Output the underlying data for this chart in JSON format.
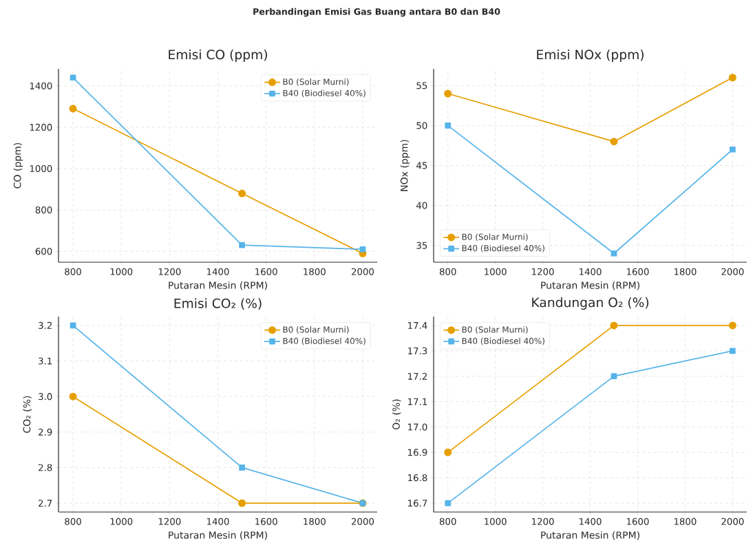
{
  "chart_data": [
    {
      "type": "other",
      "title": "Perbandingan Emisi Gas Buang antara B0 dan B40"
    },
    {
      "type": "line",
      "title": "Emisi CO (ppm)",
      "xlabel": "Putaran Mesin (RPM)",
      "ylabel": "CO (ppm)",
      "x": [
        800,
        1500,
        2000
      ],
      "series": [
        {
          "name": "B0 (Solar Murni)",
          "color": "#e69f00",
          "marker": "circle",
          "values": [
            1290,
            880,
            590
          ]
        },
        {
          "name": "B40 (Biodiesel 40%)",
          "color": "#56b4e9",
          "marker": "square",
          "values": [
            1440,
            630,
            610
          ]
        }
      ],
      "xlim": [
        740,
        2060
      ],
      "ylim": [
        547.5,
        1482.5
      ],
      "xticks": [
        800,
        1000,
        1200,
        1400,
        1600,
        1800,
        2000
      ],
      "yticks": [
        600,
        800,
        1000,
        1200,
        1400
      ],
      "grid": true,
      "legend": "top right"
    },
    {
      "type": "line",
      "title": "Emisi NOx (ppm)",
      "xlabel": "Putaran Mesin (RPM)",
      "ylabel": "NOx (ppm)",
      "x": [
        800,
        1500,
        2000
      ],
      "series": [
        {
          "name": "B0 (Solar Murni)",
          "color": "#e69f00",
          "marker": "circle",
          "values": [
            54,
            48,
            56
          ]
        },
        {
          "name": "B40 (Biodiesel 40%)",
          "color": "#56b4e9",
          "marker": "square",
          "values": [
            50,
            34,
            47
          ]
        }
      ],
      "xlim": [
        740,
        2060
      ],
      "ylim": [
        32.9,
        57.1
      ],
      "xticks": [
        800,
        1000,
        1200,
        1400,
        1600,
        1800,
        2000
      ],
      "yticks": [
        35,
        40,
        45,
        50,
        55
      ],
      "grid": true,
      "legend": "bottom left"
    },
    {
      "type": "line",
      "title": "Emisi CO₂ (%)",
      "xlabel": "Putaran Mesin (RPM)",
      "ylabel": "CO₂ (%)",
      "x": [
        800,
        1500,
        2000
      ],
      "series": [
        {
          "name": "B0 (Solar Murni)",
          "color": "#e69f00",
          "marker": "circle",
          "values": [
            3.0,
            2.7,
            2.7
          ]
        },
        {
          "name": "B40 (Biodiesel 40%)",
          "color": "#56b4e9",
          "marker": "square",
          "values": [
            3.2,
            2.8,
            2.7
          ]
        }
      ],
      "xlim": [
        740,
        2060
      ],
      "ylim": [
        2.675,
        3.225
      ],
      "xticks": [
        800,
        1000,
        1200,
        1400,
        1600,
        1800,
        2000
      ],
      "yticks": [
        {
          "value": 2.7,
          "label": "2.7"
        },
        {
          "value": 2.8,
          "label": "2.8"
        },
        {
          "value": 2.9,
          "label": "2.9"
        },
        {
          "value": 3.0,
          "label": "3.0"
        },
        {
          "value": 3.1,
          "label": "3.1"
        },
        {
          "value": 3.2,
          "label": "3.2"
        }
      ],
      "grid": true,
      "legend": "top right"
    },
    {
      "type": "line",
      "title": "Kandungan O₂ (%)",
      "xlabel": "Putaran Mesin (RPM)",
      "ylabel": "O₂ (%)",
      "x": [
        800,
        1500,
        2000
      ],
      "series": [
        {
          "name": "B0 (Solar Murni)",
          "color": "#e69f00",
          "marker": "circle",
          "values": [
            16.9,
            17.4,
            17.4
          ]
        },
        {
          "name": "B40 (Biodiesel 40%)",
          "color": "#56b4e9",
          "marker": "square",
          "values": [
            16.7,
            17.2,
            17.3
          ]
        }
      ],
      "xlim": [
        740,
        2060
      ],
      "ylim": [
        16.665,
        17.435
      ],
      "xticks": [
        800,
        1000,
        1200,
        1400,
        1600,
        1800,
        2000
      ],
      "yticks": [
        {
          "value": 16.7,
          "label": "16.7"
        },
        {
          "value": 16.8,
          "label": "16.8"
        },
        {
          "value": 16.9,
          "label": "16.9"
        },
        {
          "value": 17.0,
          "label": "17.0"
        },
        {
          "value": 17.1,
          "label": "17.1"
        },
        {
          "value": 17.2,
          "label": "17.2"
        },
        {
          "value": 17.3,
          "label": "17.3"
        },
        {
          "value": 17.4,
          "label": "17.4"
        }
      ],
      "grid": true,
      "legend": "top left"
    }
  ]
}
